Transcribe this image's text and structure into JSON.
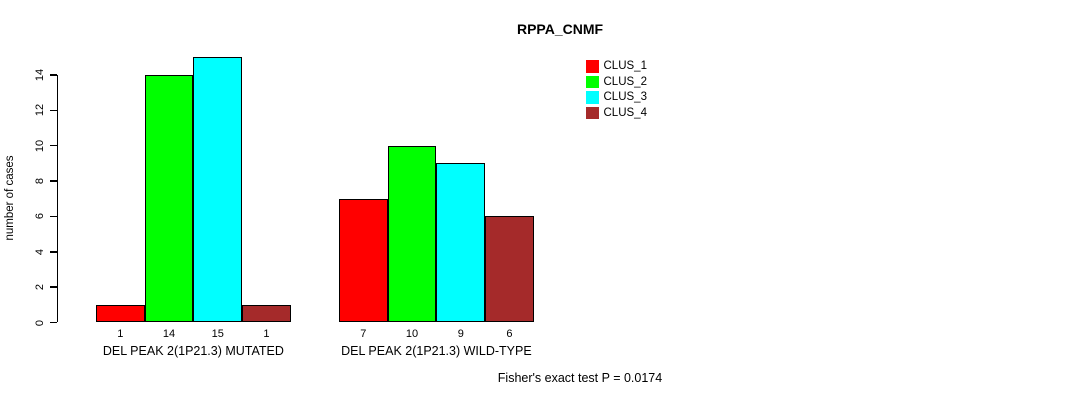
{
  "chart_data": {
    "type": "bar",
    "title": "RPPA_CNMF",
    "ylabel": "number of cases",
    "xlabel": "",
    "footer": "Fisher's exact test P = 0.0174",
    "ylim": [
      0,
      15
    ],
    "yticks": [
      0,
      2,
      4,
      6,
      8,
      10,
      12,
      14
    ],
    "grid": false,
    "legend_position": "top-right",
    "categories": [
      "DEL PEAK 2(1P21.3) MUTATED",
      "DEL PEAK 2(1P21.3) WILD-TYPE"
    ],
    "series": [
      {
        "name": "CLUS_1",
        "color": "#FF0000",
        "values": [
          1,
          7
        ]
      },
      {
        "name": "CLUS_2",
        "color": "#00FF00",
        "values": [
          14,
          10
        ]
      },
      {
        "name": "CLUS_3",
        "color": "#00FFFF",
        "values": [
          15,
          9
        ]
      },
      {
        "name": "CLUS_4",
        "color": "#A52A2A",
        "values": [
          1,
          6
        ]
      }
    ]
  }
}
